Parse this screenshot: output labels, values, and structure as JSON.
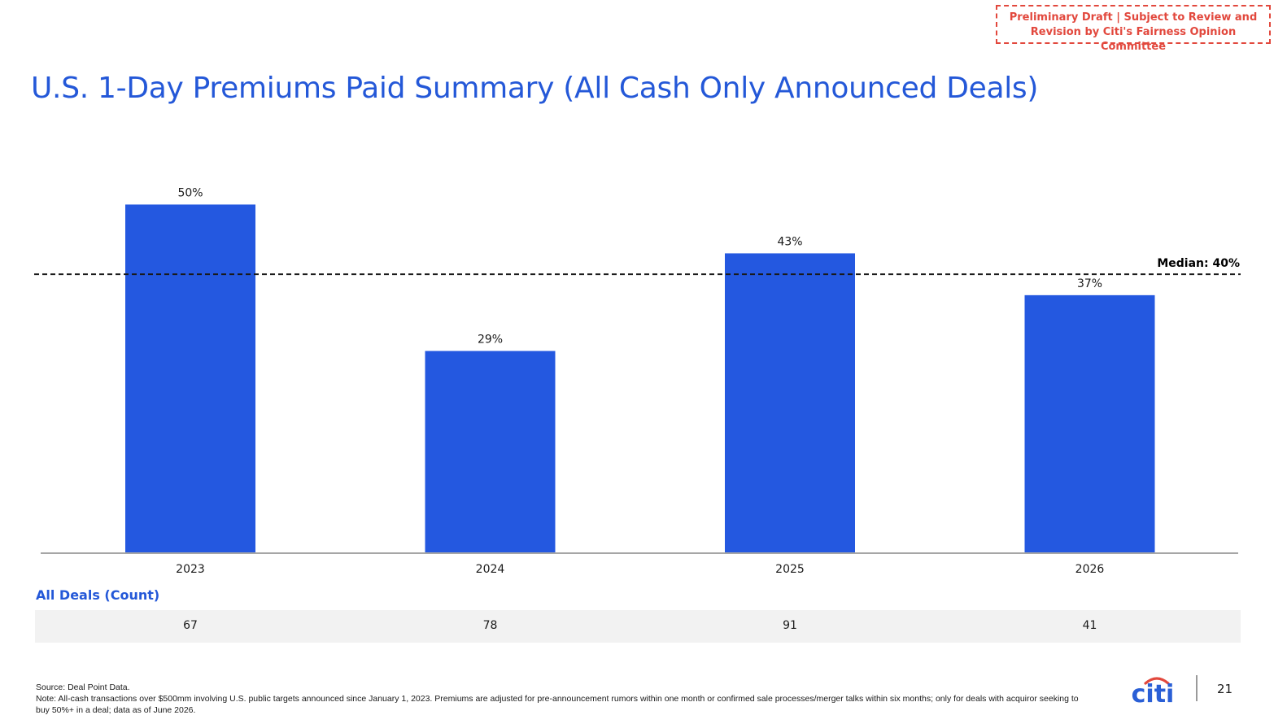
{
  "draft_notice": {
    "line1": "Preliminary Draft | Subject to Review and",
    "line2": "Revision by Citi's Fairness Opinion Committee"
  },
  "title": "U.S. 1-Day Premiums Paid Summary (All Cash Only Announced Deals)",
  "chart_data": {
    "type": "bar",
    "categories": [
      "2023",
      "2024",
      "2025",
      "2026"
    ],
    "values": [
      50,
      29,
      43,
      37
    ],
    "value_labels": [
      "50%",
      "29%",
      "43%",
      "37%"
    ],
    "unit": "%",
    "ylim": [
      0,
      56
    ],
    "median": {
      "value": 40,
      "label": "Median: 40%"
    },
    "bar_color": "#2458e0",
    "grid": false,
    "legend": "none"
  },
  "deals": {
    "heading": "All Deals (Count)",
    "counts": [
      "67",
      "78",
      "91",
      "41"
    ]
  },
  "footnotes": {
    "source": "Source: Deal Point Data.",
    "note": "Note: All-cash transactions over $500mm involving U.S. public targets announced since January 1, 2023. Premiums are adjusted for pre-announcement rumors within one month or confirmed sale processes/merger talks within six months; only for deals with acquiror seeking to buy 50%+ in a deal; data as of June 2026."
  },
  "footer": {
    "logo_text": "citi",
    "page_number": "21"
  },
  "colors": {
    "accent_blue": "#2458d8",
    "draft_red": "#e2483d",
    "logo_red": "#e2483d",
    "logo_blue": "#2a5fd6"
  }
}
